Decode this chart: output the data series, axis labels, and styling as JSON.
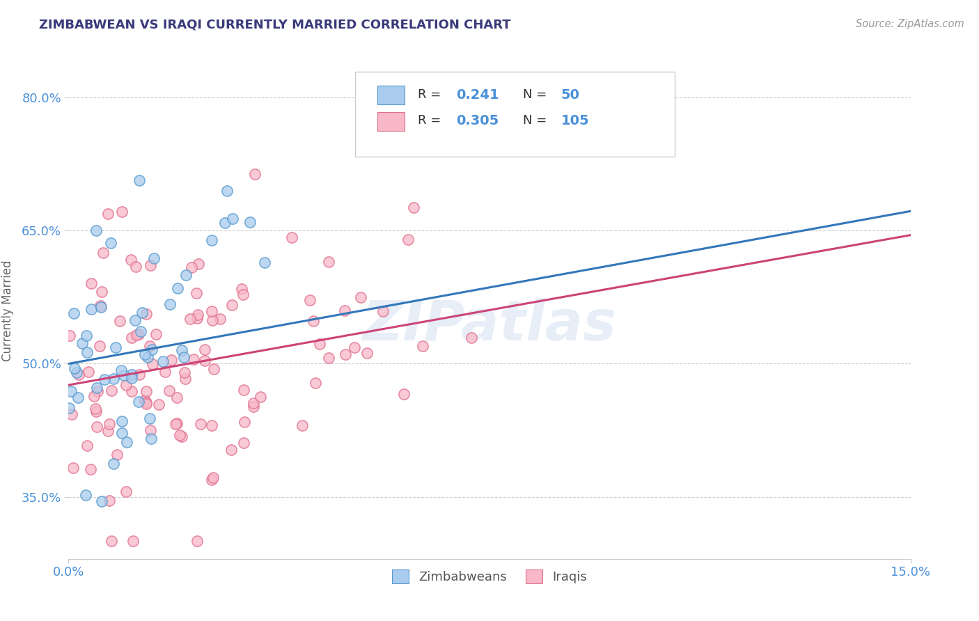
{
  "title": "ZIMBABWEAN VS IRAQI CURRENTLY MARRIED CORRELATION CHART",
  "source_text": "Source: ZipAtlas.com",
  "ylabel": "Currently Married",
  "xlim": [
    0.0,
    0.15
  ],
  "ylim": [
    0.28,
    0.84
  ],
  "xtick_vals": [
    0.0,
    0.15
  ],
  "xtick_labels": [
    "0.0%",
    "15.0%"
  ],
  "ytick_vals": [
    0.35,
    0.5,
    0.65,
    0.8
  ],
  "ytick_labels": [
    "35.0%",
    "50.0%",
    "65.0%",
    "80.0%"
  ],
  "watermark": "ZIPatlas",
  "legend_r1_val": "0.241",
  "legend_n1_val": "50",
  "legend_r2_val": "0.305",
  "legend_n2_val": "105",
  "blue_face_color": "#aaccee",
  "blue_edge_color": "#5599cc",
  "pink_face_color": "#f8b8c8",
  "pink_edge_color": "#e07090",
  "line_blue_color": "#3377bb",
  "line_pink_color": "#cc4477",
  "title_color": "#3a3a7a",
  "tick_color": "#4a90d9",
  "grid_color": "#cccccc",
  "blue_trend_y0": 0.5,
  "blue_trend_y1": 0.672,
  "pink_trend_y0": 0.476,
  "pink_trend_y1": 0.645
}
